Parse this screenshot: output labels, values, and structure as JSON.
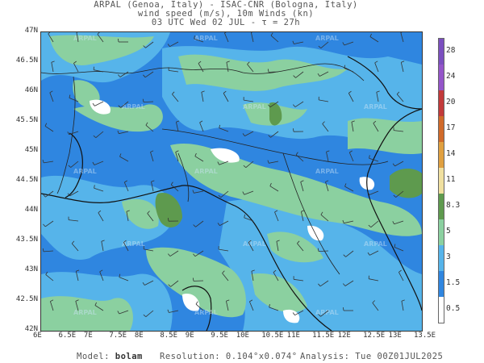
{
  "header": {
    "line1": "ARPAL (Genoa, Italy)  -  ISAC-CNR (Bologna, Italy)",
    "line2": "wind speed (m/s), 10m Winds (kn)",
    "line3": "03 UTC Wed 02 JUL  -  τ = 27h"
  },
  "map": {
    "lat_labels": [
      "47N",
      "46.5N",
      "46N",
      "45.5N",
      "45N",
      "44.5N",
      "44N",
      "43.5N",
      "43N",
      "42.5N",
      "42N"
    ],
    "lon_labels": [
      "6E",
      "6.5E",
      "7E",
      "7.5E",
      "8E",
      "8.5E",
      "9E",
      "9.5E",
      "10E",
      "10.5E",
      "11E",
      "11.5E",
      "12E",
      "12.5E",
      "13E",
      "13.5E"
    ],
    "lat_range": [
      42,
      47
    ],
    "lon_range": [
      6,
      13.5
    ],
    "watermark": "ARPAL",
    "colors": {
      "ocean_blue": "#2f86e0",
      "light_blue": "#56b4ea",
      "green": "#8bd0a0",
      "dark_green": "#5e9a4e",
      "white": "#ffffff"
    }
  },
  "colorbar": {
    "levels": [
      "28",
      "24",
      "20",
      "17",
      "14",
      "11",
      "8.3",
      "5",
      "3",
      "1.5",
      "0.5"
    ],
    "colors": [
      "#7b4fbf",
      "#9455c9",
      "#c23a3a",
      "#d06a2a",
      "#e0a040",
      "#f0e0a0",
      "#5e9a4e",
      "#8bd0a0",
      "#56b4ea",
      "#2f86e0",
      "#ffffff"
    ]
  },
  "footer": {
    "model_label": "Model:",
    "model_value": "bolam",
    "resolution_label": "Resolution:",
    "resolution_value": "0.104°x0.074°",
    "analysis_label": "Analysis:",
    "analysis_value": "Tue 00Z01JUL2025"
  }
}
